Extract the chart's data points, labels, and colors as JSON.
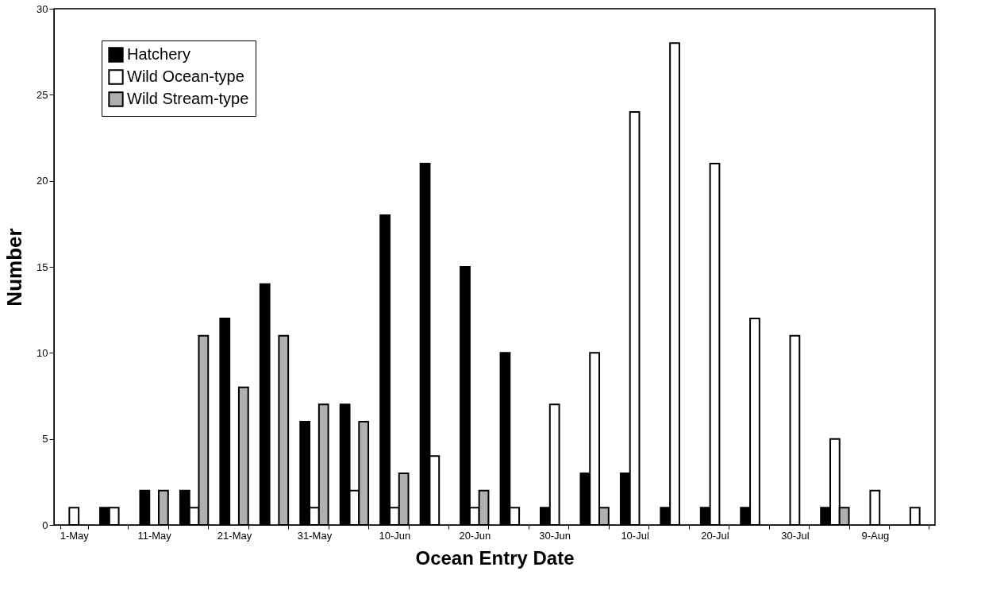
{
  "chart_data": {
    "type": "bar",
    "xlabel": "Ocean Entry Date",
    "ylabel": "Number",
    "categories": [
      "1-May",
      null,
      "11-May",
      null,
      "21-May",
      null,
      "31-May",
      null,
      "10-Jun",
      null,
      "20-Jun",
      null,
      "30-Jun",
      null,
      "10-Jul",
      null,
      "20-Jul",
      null,
      "30-Jul",
      null,
      "9-Aug",
      null
    ],
    "series": [
      {
        "name": "Hatchery",
        "color": "#000000",
        "values": [
          0,
          1,
          2,
          2,
          12,
          14,
          6,
          7,
          18,
          21,
          15,
          10,
          1,
          3,
          3,
          1,
          1,
          1,
          0,
          1,
          0,
          0
        ]
      },
      {
        "name": "Wild Ocean-type",
        "color": "#ffffff",
        "values": [
          1,
          1,
          0,
          1,
          0,
          0,
          1,
          2,
          1,
          4,
          1,
          1,
          7,
          10,
          24,
          28,
          21,
          12,
          11,
          5,
          2,
          1
        ]
      },
      {
        "name": "Wild Stream-type",
        "color": "#b0b0b0",
        "values": [
          0,
          0,
          2,
          11,
          8,
          11,
          7,
          6,
          3,
          0,
          2,
          0,
          0,
          1,
          0,
          0,
          0,
          0,
          0,
          1,
          0,
          0
        ]
      }
    ],
    "ylim": [
      0,
      30
    ],
    "yticks": [
      0,
      5,
      10,
      15,
      20,
      25,
      30
    ],
    "grid": false,
    "legend": "top left"
  }
}
